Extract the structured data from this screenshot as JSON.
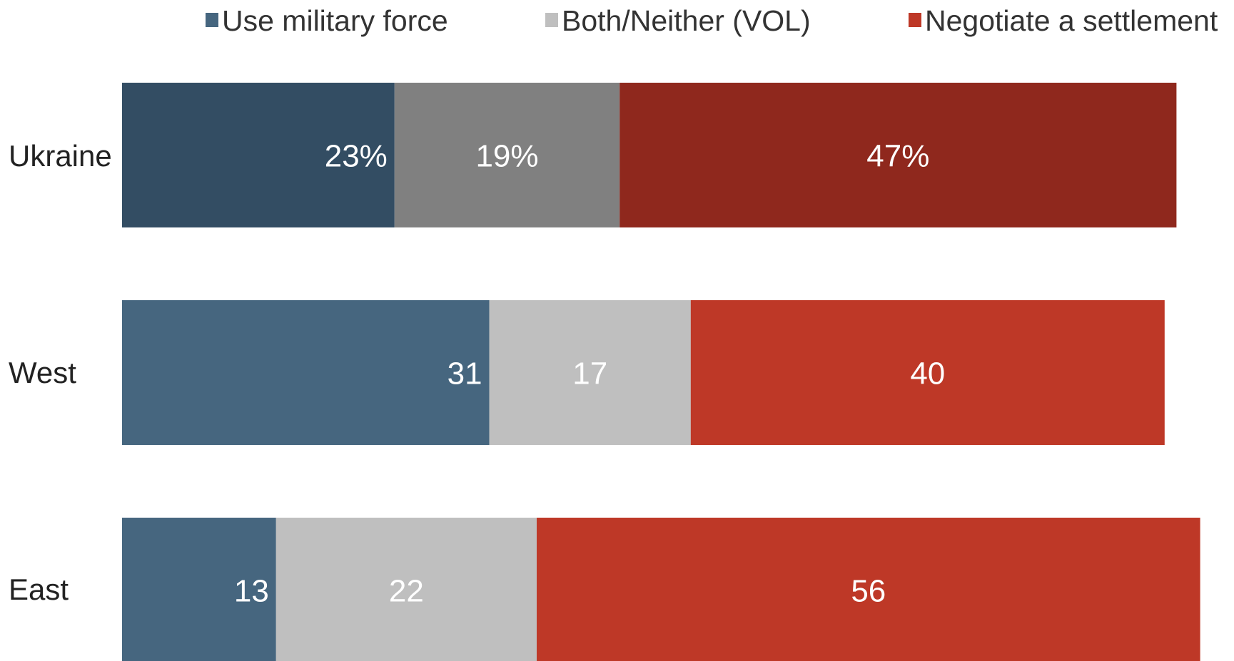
{
  "chart_data": {
    "type": "bar",
    "orientation": "horizontal",
    "stacked": true,
    "title": "",
    "xlabel": "",
    "ylabel": "",
    "xlim": [
      0,
      100
    ],
    "grid": false,
    "legend_position": "top",
    "categories": [
      "Ukraine",
      "West",
      "East"
    ],
    "series": [
      {
        "name": "Use military force",
        "values": [
          23,
          31,
          13
        ],
        "labels": [
          "23%",
          "31",
          "13"
        ],
        "colors": [
          "#334d63",
          "#46667f",
          "#46667f"
        ]
      },
      {
        "name": "Both/Neither (VOL)",
        "values": [
          19,
          17,
          22
        ],
        "labels": [
          "19%",
          "17",
          "22"
        ],
        "colors": [
          "#808080",
          "#bfbfbf",
          "#bfbfbf"
        ]
      },
      {
        "name": "Negotiate a settlement",
        "values": [
          47,
          40,
          56
        ],
        "labels": [
          "47%",
          "40",
          "56"
        ],
        "colors": [
          "#8f281d",
          "#be3827",
          "#be3827"
        ]
      }
    ],
    "legend_colors": [
      "#46667f",
      "#bfbfbf",
      "#be3827"
    ]
  }
}
